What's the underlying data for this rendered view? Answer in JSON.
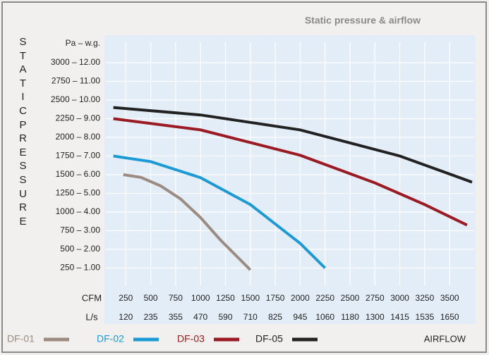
{
  "chart_data": {
    "type": "line",
    "title": "Static pressure & airflow",
    "y_label": "STATIC PRESSURE",
    "y_unit_label": "Pa – w.g.",
    "x_label": "AIRFLOW",
    "x_unit_label": "CFM",
    "x2_unit_label": "L/s",
    "xlim": [
      0,
      3750
    ],
    "xticks": [
      250,
      500,
      750,
      1000,
      1250,
      1500,
      1750,
      2000,
      2250,
      2500,
      2750,
      3000,
      3250,
      3500
    ],
    "x2_labels": [
      "120",
      "235",
      "355",
      "470",
      "590",
      "710",
      "825",
      "945",
      "1060",
      "1180",
      "1300",
      "1415",
      "1535",
      "1650"
    ],
    "ylim": [
      0,
      3250
    ],
    "yticks": [
      {
        "value": 250,
        "label": "250 – 1.00"
      },
      {
        "value": 500,
        "label": "500 – 2.00"
      },
      {
        "value": 750,
        "label": "750 – 3.00"
      },
      {
        "value": 1000,
        "label": "1000 – 4.00"
      },
      {
        "value": 1250,
        "label": "1250 – 5.00"
      },
      {
        "value": 1500,
        "label": "1500 – 6.00"
      },
      {
        "value": 1750,
        "label": "1750 – 7.00"
      },
      {
        "value": 2000,
        "label": "2000 – 8.00"
      },
      {
        "value": 2250,
        "label": "2250 – 9.00"
      },
      {
        "value": 2500,
        "label": "2500 – 10.00"
      },
      {
        "value": 2750,
        "label": "2750 – 11.00"
      },
      {
        "value": 3000,
        "label": "3000 – 12.00"
      }
    ],
    "grid": true,
    "series": [
      {
        "name": "DF-01",
        "color": "#9b8b80",
        "x": [
          225,
          400,
          600,
          800,
          1000,
          1200,
          1500
        ],
        "values": [
          1500,
          1465,
          1350,
          1175,
          925,
          625,
          225
        ]
      },
      {
        "name": "DF-02",
        "color": "#1c9ad6",
        "x": [
          125,
          500,
          1000,
          1500,
          2000,
          2250
        ],
        "values": [
          1750,
          1675,
          1460,
          1100,
          580,
          250
        ]
      },
      {
        "name": "DF-03",
        "color": "#9b1b24",
        "x": [
          125,
          1000,
          2000,
          2750,
          3250,
          3675
        ],
        "values": [
          2250,
          2100,
          1760,
          1390,
          1100,
          825
        ]
      },
      {
        "name": "DF-05",
        "color": "#222222",
        "x": [
          125,
          1000,
          2000,
          3000,
          3725
        ],
        "values": [
          2400,
          2300,
          2100,
          1750,
          1400
        ]
      }
    ]
  }
}
